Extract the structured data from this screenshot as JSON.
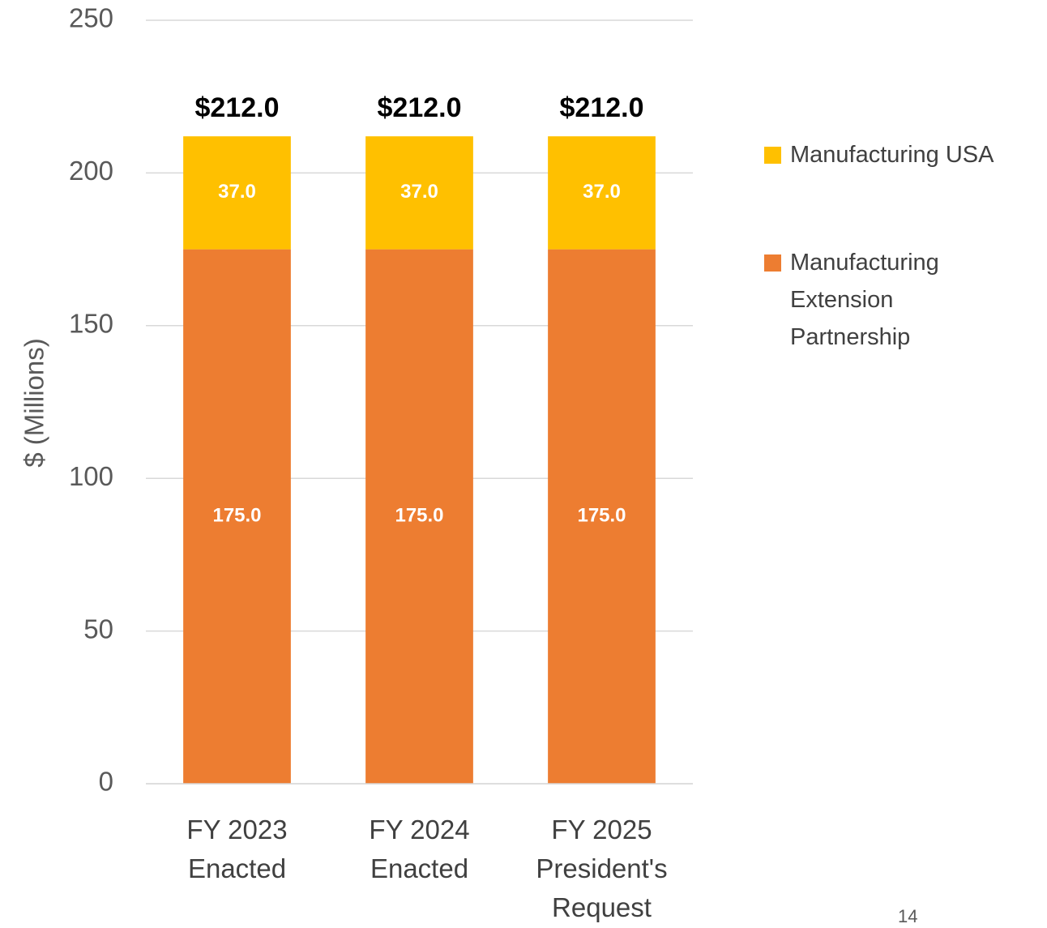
{
  "chart_data": {
    "type": "stacked_bar",
    "y_axis_label": "$ (Millions)",
    "categories": [
      "FY 2023 Enacted",
      "FY 2024 Enacted",
      "FY 2025 President's Request"
    ],
    "series": [
      {
        "name": "Manufacturing Extension Partnership",
        "color": "#ED7D31",
        "values": [
          175,
          175,
          175
        ],
        "value_labels": [
          "175.0",
          "175.0",
          "175.0"
        ]
      },
      {
        "name": "Manufacturing USA",
        "color": "#FFC000",
        "values": [
          37,
          37,
          37
        ],
        "value_labels": [
          "37.0",
          "37.0",
          "37.0"
        ]
      }
    ],
    "totals": [
      212,
      212,
      212
    ],
    "total_labels": [
      "$212.0",
      "$212.0",
      "$212.0"
    ],
    "ylim": [
      0,
      250
    ],
    "yticks": [
      0,
      50,
      100,
      150,
      200,
      250
    ],
    "grid": true,
    "legend": "right"
  },
  "page_number": 14
}
